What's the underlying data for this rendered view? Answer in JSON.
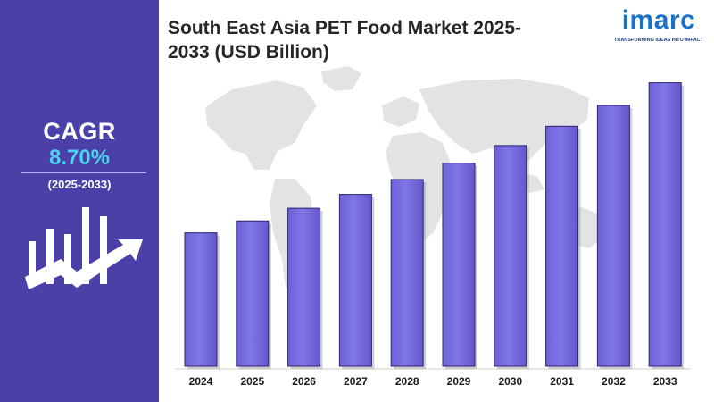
{
  "header": {
    "title": "South East Asia PET Food Market 2025-2033 (USD Billion)"
  },
  "logo": {
    "wordmark": "imarc",
    "tagline": "TRANSFORMING IDEAS INTO IMPACT"
  },
  "sidebar": {
    "cagr_label": "CAGR",
    "cagr_value": "8.70%",
    "cagr_period": "(2025-2033)",
    "icon": "bar-chart-growth-arrow-icon"
  },
  "colors": {
    "sidebar": "#4b3fa8",
    "accent": "#4fd0f0",
    "bar": "#7a6ee0",
    "bar_dark": "#5a4fc2",
    "map": "#e2e2e2"
  },
  "chart_data": {
    "type": "bar",
    "title": "South East Asia PET Food Market 2025-2033 (USD Billion)",
    "categories": [
      "2024",
      "2025",
      "2026",
      "2027",
      "2028",
      "2029",
      "2030",
      "2031",
      "2032",
      "2033"
    ],
    "values": [
      4.23,
      4.61,
      5.01,
      5.45,
      5.92,
      6.44,
      7.0,
      7.61,
      8.27,
      8.99
    ],
    "xlabel": "",
    "ylabel": "",
    "ylim": [
      0,
      9.8
    ],
    "grid": false,
    "legend": "none",
    "value_labels_shown": false
  }
}
